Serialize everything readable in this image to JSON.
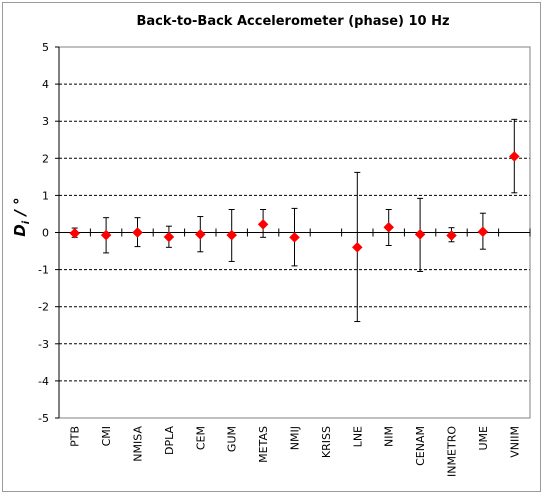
{
  "chart_data": {
    "type": "scatter",
    "title": "Back-to-Back Accelerometer  (phase)   10 Hz",
    "ylabel": "D",
    "ylabel_subscript": "i",
    "ylabel_unit": " / °",
    "xlabel": "",
    "ylim": [
      -5,
      5
    ],
    "yticks": [
      "5",
      "4",
      "3",
      "2",
      "1",
      "0",
      "-1",
      "-2",
      "-3",
      "-4",
      "-5"
    ],
    "grid": "horizontal dashed",
    "marker_color": "#ff0000",
    "categories": [
      "PTB",
      "CMI",
      "NMISA",
      "DPLA",
      "CEM",
      "GUM",
      "METAS",
      "NMIJ",
      "KRISS",
      "LNE",
      "NIM",
      "CENAM",
      "INMETRO",
      "UME",
      "VNIIM"
    ],
    "values": [
      -0.02,
      -0.07,
      0.0,
      -0.12,
      -0.05,
      -0.07,
      0.22,
      -0.13,
      null,
      -0.4,
      0.14,
      -0.05,
      -0.08,
      0.02,
      2.05
    ],
    "err_low": [
      -0.13,
      -0.55,
      -0.38,
      -0.4,
      -0.52,
      -0.78,
      -0.13,
      -0.9,
      null,
      -2.4,
      -0.35,
      -1.05,
      -0.25,
      -0.45,
      1.07
    ],
    "err_high": [
      0.12,
      0.4,
      0.4,
      0.17,
      0.43,
      0.62,
      0.62,
      0.65,
      null,
      1.62,
      0.62,
      0.92,
      0.13,
      0.52,
      3.05
    ]
  }
}
